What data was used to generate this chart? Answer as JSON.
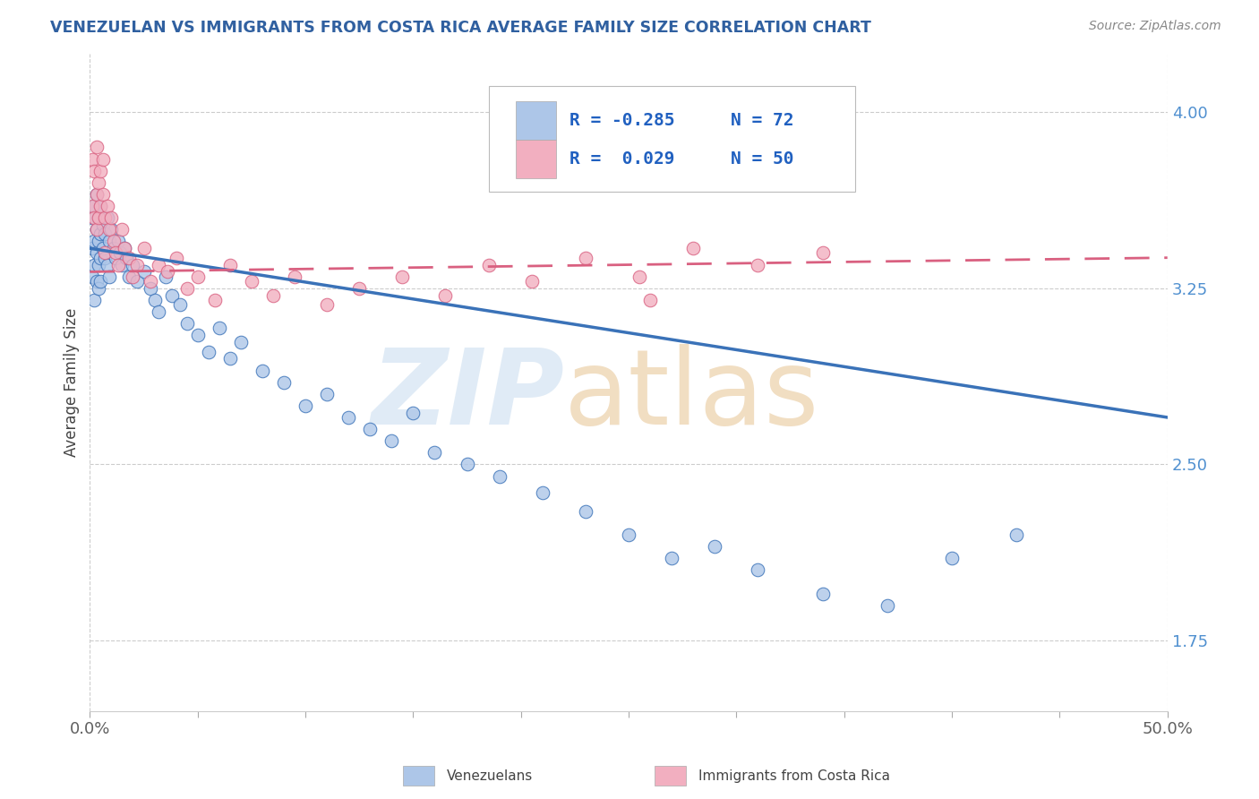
{
  "title": "VENEZUELAN VS IMMIGRANTS FROM COSTA RICA AVERAGE FAMILY SIZE CORRELATION CHART",
  "source": "Source: ZipAtlas.com",
  "ylabel": "Average Family Size",
  "yticks": [
    1.75,
    2.5,
    3.25,
    4.0
  ],
  "xlim": [
    0.0,
    0.5
  ],
  "ylim": [
    1.45,
    4.25
  ],
  "blue_color": "#adc6e8",
  "pink_color": "#f2afc0",
  "blue_line_color": "#3a72b8",
  "pink_line_color": "#d96080",
  "background_color": "#ffffff",
  "watermark_zip_color": "#d0e4f5",
  "watermark_atlas_color": "#f0d5b0",
  "title_color": "#3060a0",
  "ytick_color": "#5090d0",
  "xtick_color": "#606060",
  "legend_text_color": "#2060c0",
  "legend_r1": "R = -0.285",
  "legend_n1": "N = 72",
  "legend_r2": "R =  0.029",
  "legend_n2": "N = 50",
  "venezuelan_x": [
    0.001,
    0.001,
    0.001,
    0.002,
    0.002,
    0.002,
    0.002,
    0.003,
    0.003,
    0.003,
    0.003,
    0.004,
    0.004,
    0.004,
    0.004,
    0.005,
    0.005,
    0.005,
    0.005,
    0.006,
    0.006,
    0.007,
    0.007,
    0.008,
    0.008,
    0.009,
    0.009,
    0.01,
    0.011,
    0.012,
    0.013,
    0.014,
    0.015,
    0.016,
    0.017,
    0.018,
    0.02,
    0.022,
    0.025,
    0.028,
    0.03,
    0.032,
    0.035,
    0.038,
    0.042,
    0.045,
    0.05,
    0.055,
    0.06,
    0.065,
    0.07,
    0.08,
    0.09,
    0.1,
    0.11,
    0.12,
    0.13,
    0.14,
    0.15,
    0.16,
    0.175,
    0.19,
    0.21,
    0.23,
    0.25,
    0.27,
    0.29,
    0.31,
    0.34,
    0.37,
    0.4,
    0.43
  ],
  "venezuelan_y": [
    3.55,
    3.42,
    3.3,
    3.6,
    3.45,
    3.35,
    3.2,
    3.65,
    3.5,
    3.4,
    3.28,
    3.55,
    3.45,
    3.35,
    3.25,
    3.6,
    3.48,
    3.38,
    3.28,
    3.52,
    3.42,
    3.48,
    3.38,
    3.55,
    3.35,
    3.45,
    3.3,
    3.5,
    3.42,
    3.38,
    3.45,
    3.4,
    3.35,
    3.42,
    3.38,
    3.3,
    3.35,
    3.28,
    3.32,
    3.25,
    3.2,
    3.15,
    3.3,
    3.22,
    3.18,
    3.1,
    3.05,
    2.98,
    3.08,
    2.95,
    3.02,
    2.9,
    2.85,
    2.75,
    2.8,
    2.7,
    2.65,
    2.6,
    2.72,
    2.55,
    2.5,
    2.45,
    2.38,
    2.3,
    2.2,
    2.1,
    2.15,
    2.05,
    1.95,
    1.9,
    2.1,
    2.2
  ],
  "costarica_x": [
    0.001,
    0.001,
    0.002,
    0.002,
    0.003,
    0.003,
    0.003,
    0.004,
    0.004,
    0.005,
    0.005,
    0.006,
    0.006,
    0.007,
    0.007,
    0.008,
    0.009,
    0.01,
    0.011,
    0.012,
    0.013,
    0.015,
    0.016,
    0.018,
    0.02,
    0.022,
    0.025,
    0.028,
    0.032,
    0.036,
    0.04,
    0.045,
    0.05,
    0.058,
    0.065,
    0.075,
    0.085,
    0.095,
    0.11,
    0.125,
    0.145,
    0.165,
    0.185,
    0.205,
    0.23,
    0.255,
    0.28,
    0.31,
    0.34,
    0.26
  ],
  "costarica_y": [
    3.8,
    3.6,
    3.75,
    3.55,
    3.85,
    3.65,
    3.5,
    3.7,
    3.55,
    3.75,
    3.6,
    3.8,
    3.65,
    3.55,
    3.4,
    3.6,
    3.5,
    3.55,
    3.45,
    3.4,
    3.35,
    3.5,
    3.42,
    3.38,
    3.3,
    3.35,
    3.42,
    3.28,
    3.35,
    3.32,
    3.38,
    3.25,
    3.3,
    3.2,
    3.35,
    3.28,
    3.22,
    3.3,
    3.18,
    3.25,
    3.3,
    3.22,
    3.35,
    3.28,
    3.38,
    3.3,
    3.42,
    3.35,
    3.4,
    3.2
  ],
  "xtick_positions": [
    0.0,
    0.05,
    0.1,
    0.15,
    0.2,
    0.25,
    0.3,
    0.35,
    0.4,
    0.45,
    0.5
  ]
}
